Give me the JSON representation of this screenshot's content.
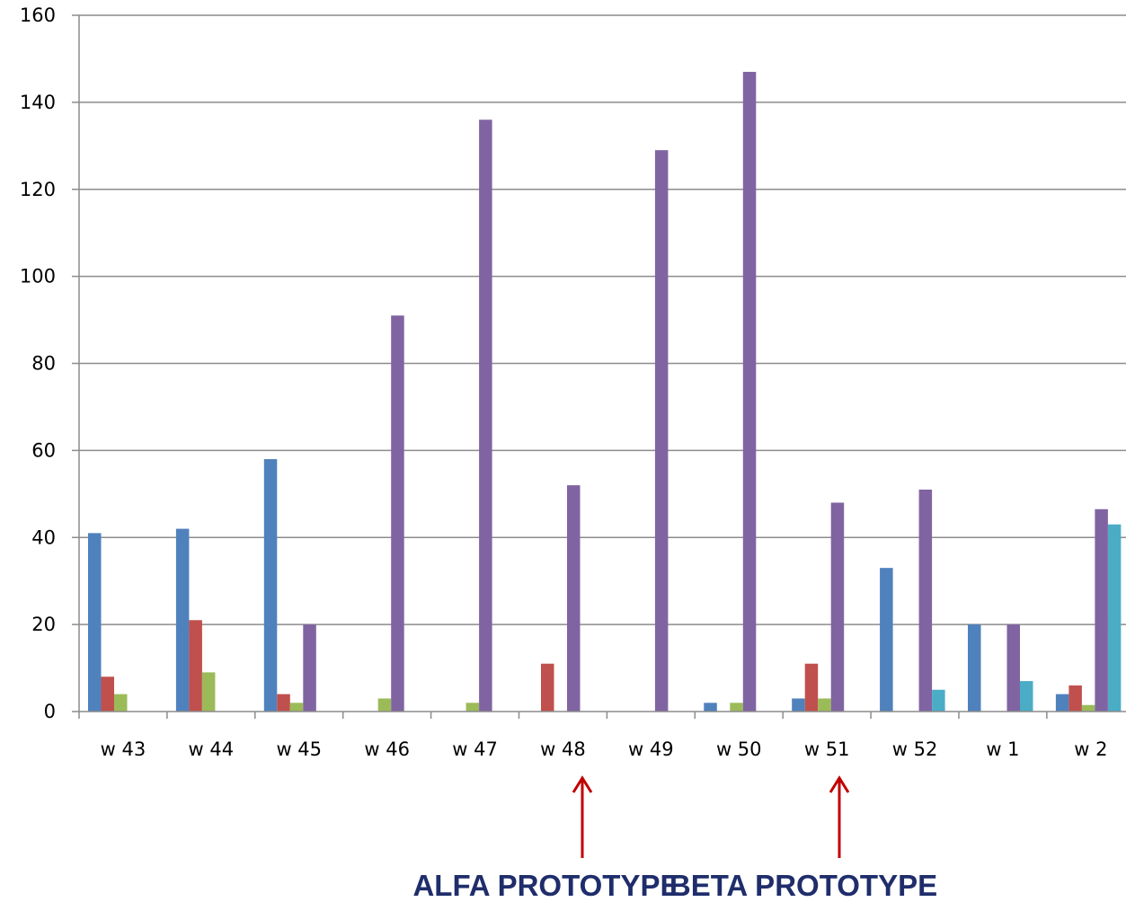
{
  "chart_data": {
    "type": "bar",
    "categories": [
      "w 43",
      "w 44",
      "w 45",
      "w 46",
      "w 47",
      "w 48",
      "w 49",
      "w 50",
      "w 51",
      "w 52",
      "w 1",
      "w 2"
    ],
    "ylim": [
      0,
      160
    ],
    "yticks": [
      0,
      20,
      40,
      60,
      80,
      100,
      120,
      140,
      160
    ],
    "grid": true,
    "series": [
      {
        "color": "#4f81bd",
        "values": [
          41,
          42,
          58,
          0,
          0,
          0,
          0,
          2,
          3,
          33,
          20,
          4
        ]
      },
      {
        "color": "#c0504d",
        "values": [
          8,
          21,
          4,
          0,
          0,
          11,
          0,
          0,
          11,
          0,
          0,
          6
        ]
      },
      {
        "color": "#9bbb59",
        "values": [
          4,
          9,
          2,
          3,
          2,
          0,
          0,
          2,
          3,
          0,
          0,
          1.5
        ]
      },
      {
        "color": "#8064a2",
        "values": [
          0,
          0,
          20,
          91,
          136,
          52,
          129,
          147,
          48,
          51,
          20,
          46.5
        ]
      },
      {
        "color": "#4bacc6",
        "values": [
          0,
          0,
          0,
          0,
          0,
          0,
          0,
          0,
          0,
          5,
          7,
          43
        ]
      }
    ],
    "annotations": [
      {
        "text": "ALFA PROTOTYPE",
        "category": "w 48",
        "arrow_color": "#c00000"
      },
      {
        "text": "BETA PROTOTYPE",
        "category": "w 51",
        "arrow_color": "#c00000"
      }
    ]
  }
}
